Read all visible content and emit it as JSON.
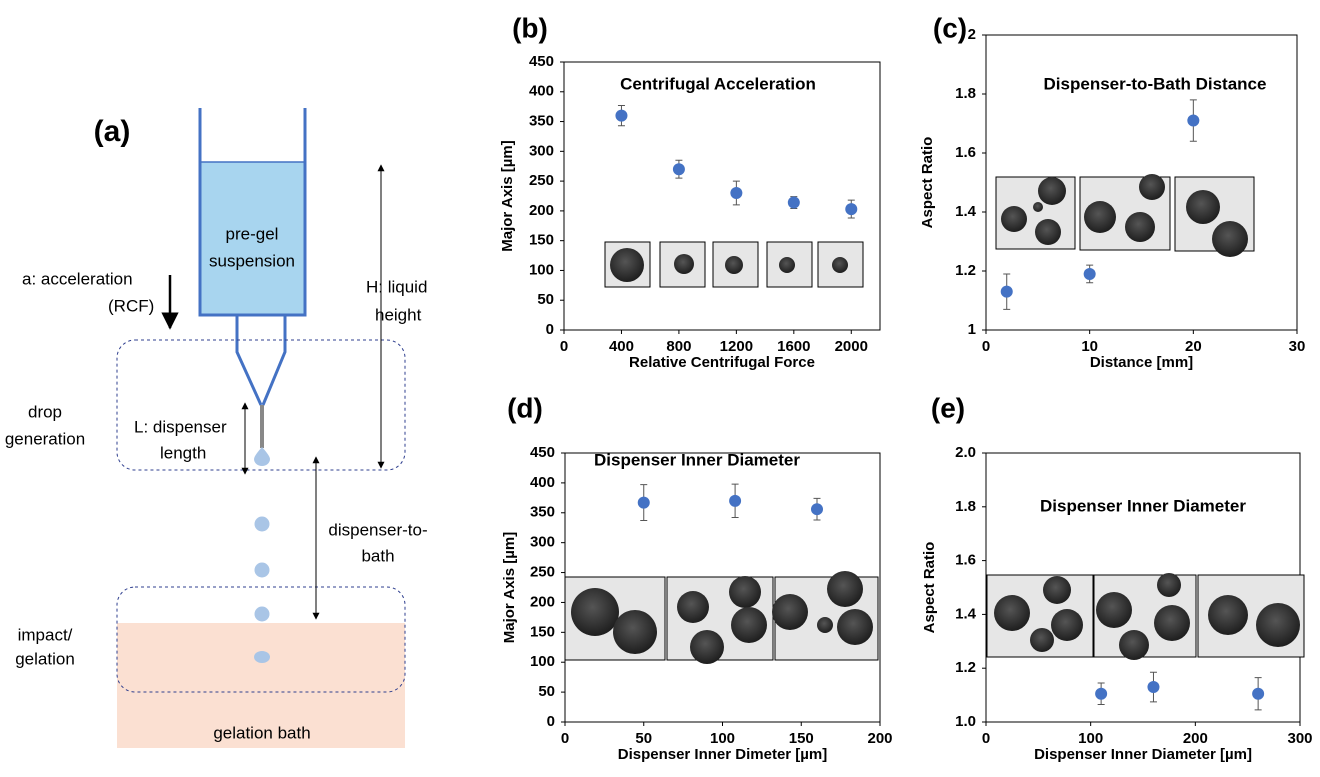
{
  "diagram": {
    "panel": "(a)",
    "container": [
      "pre-gel",
      "suspension"
    ],
    "acceleration": [
      "a: acceleration",
      "(RCF)"
    ],
    "height": [
      "H: liquid",
      "height"
    ],
    "drop_generation": [
      "drop",
      "generation"
    ],
    "dispenser_length": [
      "L: dispenser",
      "length"
    ],
    "distance": [
      "dispenser-to-",
      "bath"
    ],
    "impact": [
      "impact/",
      "gelation"
    ],
    "bath": "gelation bath"
  },
  "chart_data": [
    {
      "type": "scatter",
      "panel": "(b)",
      "title": "Centrifugal Acceleration",
      "xlabel": "Relative Centrifugal Force",
      "ylabel": "Major Axis [µm]",
      "x": [
        400,
        800,
        1200,
        1600,
        2000
      ],
      "values": [
        360,
        270,
        230,
        214,
        203
      ],
      "errors": [
        17,
        15,
        20,
        10,
        15
      ],
      "color": "#4472c4",
      "xlim": [
        0,
        2200
      ],
      "ylim": [
        0,
        450
      ],
      "xticks": [
        0,
        400,
        800,
        1200,
        1600,
        2000
      ],
      "yticks": [
        0,
        50,
        100,
        150,
        200,
        250,
        300,
        350,
        400,
        450
      ]
    },
    {
      "type": "scatter",
      "panel": "(c)",
      "title": "Dispenser-to-Bath Distance",
      "xlabel": "Distance [mm]",
      "ylabel": "Aspect Ratio",
      "x": [
        2,
        10,
        20
      ],
      "values": [
        1.13,
        1.19,
        1.71
      ],
      "errors": [
        0.06,
        0.03,
        0.07
      ],
      "color": "#4472c4",
      "xlim": [
        0,
        30
      ],
      "ylim": [
        1,
        2
      ],
      "xticks": [
        0,
        10,
        20,
        30
      ],
      "yticks": [
        1,
        1.2,
        1.4,
        1.6,
        1.8,
        2
      ]
    },
    {
      "type": "scatter",
      "panel": "(d)",
      "title": "Dispenser Inner Diameter",
      "xlabel": "Dispenser Inner Dimeter [µm]",
      "ylabel": "Major Axis [µm]",
      "x": [
        50,
        108,
        160
      ],
      "values": [
        367,
        370,
        356
      ],
      "errors": [
        30,
        28,
        18
      ],
      "color": "#4472c4",
      "xlim": [
        0,
        200
      ],
      "ylim": [
        0,
        450
      ],
      "xticks": [
        0,
        50,
        100,
        150,
        200
      ],
      "yticks": [
        0,
        50,
        100,
        150,
        200,
        250,
        300,
        350,
        400,
        450
      ]
    },
    {
      "type": "scatter",
      "panel": "(e)",
      "title": "Dispenser Inner Diameter",
      "xlabel": "Dispenser Inner Diameter [µm]",
      "ylabel": "Aspect Ratio",
      "x": [
        110,
        160,
        260
      ],
      "values": [
        1.105,
        1.13,
        1.105
      ],
      "errors": [
        0.04,
        0.055,
        0.06
      ],
      "color": "#4472c4",
      "xlim": [
        0,
        300
      ],
      "ylim": [
        1,
        2
      ],
      "xticks": [
        0,
        100,
        200,
        300
      ],
      "yticks": [
        {
          "value": 1,
          "label": "1.0"
        },
        1.2,
        1.4,
        1.6,
        1.8,
        {
          "value": 2,
          "label": "2.0"
        }
      ]
    }
  ]
}
